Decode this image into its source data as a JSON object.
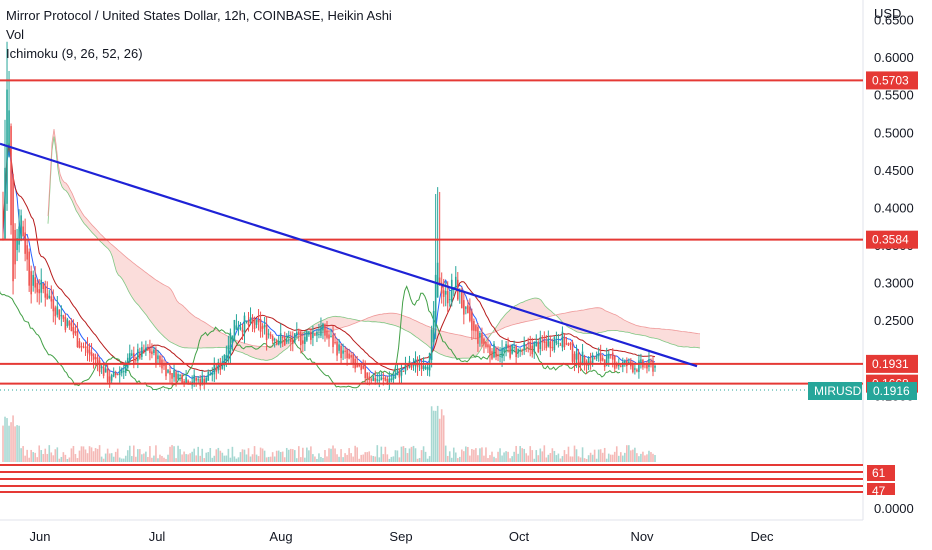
{
  "legend": {
    "title": "Mirror Protocol / United States Dollar, 12h, COINBASE, Heikin Ashi",
    "vol": "Vol",
    "ichimoku": "Ichimoku (9, 26, 52, 26)"
  },
  "chart_data": {
    "type": "candlestick",
    "currency_label": "USD",
    "symbol": "MIRUSD",
    "last_price": "0.1916",
    "ylim": [
      0.0,
      0.66
    ],
    "y_ticks": [
      "0.6500",
      "0.6000",
      "0.5500",
      "0.5000",
      "0.4500",
      "0.4000",
      "0.3500",
      "0.3000",
      "0.2500",
      "0.1500",
      "0.0000"
    ],
    "x_ticks": [
      "Jun",
      "Jul",
      "Aug",
      "Sep",
      "Oct",
      "Nov",
      "Dec"
    ],
    "horizontal_levels": [
      {
        "value": 0.5703,
        "label": "0.5703"
      },
      {
        "value": 0.3584,
        "label": "0.3584"
      },
      {
        "value": 0.1931,
        "label": "0.1931"
      },
      {
        "value": 0.1668,
        "label": "0.1668"
      }
    ],
    "oscillator_labels": [
      "61",
      "47"
    ],
    "trendline": {
      "start": {
        "date": "May 22",
        "value": 0.486
      },
      "end": {
        "date": "Nov 15",
        "value": 0.19
      }
    },
    "colors": {
      "up": "#26a69a",
      "down": "#ef5350",
      "level": "#e53935",
      "trend": "#1e22d6",
      "tenkan": "#2962ff",
      "kijun": "#b71c1c",
      "chikou": "#43a047",
      "cloud": "#f8c7c3"
    },
    "grid": false,
    "notes": "Heikin Ashi price series of MIRUSD from late May to early November; a high near 0.63 in late May, a decline toward 0.17 in June, a range 0.17–0.30 through summer, a spike to ~0.43 in early September, then drifting to ~0.19."
  }
}
